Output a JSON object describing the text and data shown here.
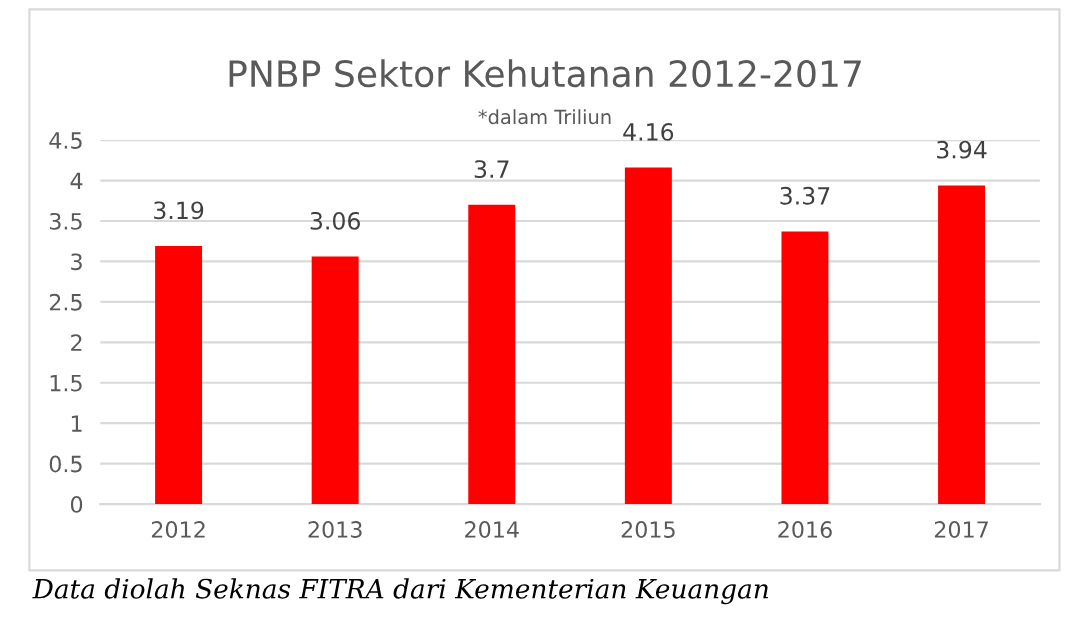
{
  "chart_data": {
    "type": "bar",
    "title": "PNBP Sektor Kehutanan 2012-2017",
    "subtitle": "*dalam Triliun",
    "categories": [
      "2012",
      "2013",
      "2014",
      "2015",
      "2016",
      "2017"
    ],
    "values": [
      3.19,
      3.06,
      3.7,
      4.16,
      3.37,
      3.94
    ],
    "color": "#ff0000",
    "ylim": [
      0,
      4.5
    ],
    "yticks": [
      0,
      0.5,
      1,
      1.5,
      2,
      2.5,
      3,
      3.5,
      4,
      4.5
    ],
    "grid": "y",
    "data_labels": true,
    "annotations": [
      "Data diolah Seknas FITRA dari Kementerian Keuangan"
    ]
  }
}
